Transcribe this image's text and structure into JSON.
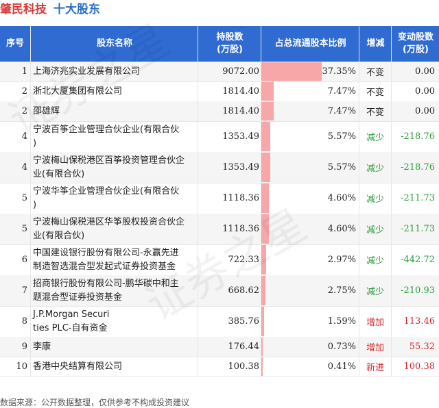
{
  "title": {
    "company": "肇民科技",
    "subtitle": "十大股东"
  },
  "headers": {
    "no": "序号",
    "name": "股东名称",
    "hold_line1": "持股数",
    "hold_line2": "(万股)",
    "ratio": "占总流通股本比例",
    "change": "增减",
    "amount_line1": "变动股数",
    "amount_line2": "(万股)"
  },
  "colors": {
    "header_bg": "#2f6bd0",
    "bar": "#f7a7a7",
    "unchanged": "#222222",
    "decrease": "#2a9d3b",
    "increase": "#d9262b"
  },
  "chart_data": {
    "type": "table",
    "columns": [
      "序号",
      "股东名称",
      "持股数(万股)",
      "占总流通股本比例",
      "增减",
      "变动股数(万股)"
    ],
    "rows": [
      {
        "no": "1",
        "name_lines": [
          "上海济兆实业发展有限公司"
        ],
        "holding": "9072.00",
        "ratio": 37.35,
        "ratio_text": "37.35%",
        "change": "不变",
        "change_type": "unchanged",
        "amount": "0.00"
      },
      {
        "no": "2",
        "name_lines": [
          "浙北大厦集团有限公司"
        ],
        "holding": "1814.40",
        "ratio": 7.47,
        "ratio_text": "7.47%",
        "change": "不变",
        "change_type": "unchanged",
        "amount": "0.00"
      },
      {
        "no": "2",
        "name_lines": [
          "邵雄辉"
        ],
        "holding": "1814.40",
        "ratio": 7.47,
        "ratio_text": "7.47%",
        "change": "不变",
        "change_type": "unchanged",
        "amount": "0.00"
      },
      {
        "no": "4",
        "name_lines": [
          "宁波百筝企业管理合伙企业(有限合伙",
          ")"
        ],
        "holding": "1353.49",
        "ratio": 5.57,
        "ratio_text": "5.57%",
        "change": "减少",
        "change_type": "decrease",
        "amount": "-218.76"
      },
      {
        "no": "4",
        "name_lines": [
          "宁波梅山保税港区百筝投资管理合伙企",
          "业(有限合伙)"
        ],
        "holding": "1353.49",
        "ratio": 5.57,
        "ratio_text": "5.57%",
        "change": "减少",
        "change_type": "decrease",
        "amount": "-218.76"
      },
      {
        "no": "5",
        "name_lines": [
          "宁波华筝企业管理合伙企业(有限合伙",
          ")"
        ],
        "holding": "1118.36",
        "ratio": 4.6,
        "ratio_text": "4.60%",
        "change": "减少",
        "change_type": "decrease",
        "amount": "-211.73"
      },
      {
        "no": "5",
        "name_lines": [
          "宁波梅山保税港区华筝股权投资合伙企",
          "业(有限合伙)"
        ],
        "holding": "1118.36",
        "ratio": 4.6,
        "ratio_text": "4.60%",
        "change": "减少",
        "change_type": "decrease",
        "amount": "-211.73"
      },
      {
        "no": "6",
        "name_lines": [
          "中国建设银行股份有限公司-永赢先进",
          "制造智选混合型发起式证券投资基金"
        ],
        "holding": "722.33",
        "ratio": 2.97,
        "ratio_text": "2.97%",
        "change": "减少",
        "change_type": "decrease",
        "amount": "-442.72"
      },
      {
        "no": "7",
        "name_lines": [
          "招商银行股份有限公司-鹏华碳中和主",
          "题混合型证券投资基金"
        ],
        "holding": "668.62",
        "ratio": 2.75,
        "ratio_text": "2.75%",
        "change": "减少",
        "change_type": "decrease",
        "amount": "-210.93"
      },
      {
        "no": "8",
        "name_lines": [
          "J.P.Morgan Securi",
          "ties PLC-自有资金"
        ],
        "holding": "385.76",
        "ratio": 1.59,
        "ratio_text": "1.59%",
        "change": "增加",
        "change_type": "increase",
        "amount": "113.46"
      },
      {
        "no": "9",
        "name_lines": [
          "李康"
        ],
        "holding": "176.44",
        "ratio": 0.73,
        "ratio_text": "0.73%",
        "change": "增加",
        "change_type": "increase",
        "amount": "55.32"
      },
      {
        "no": "10",
        "name_lines": [
          "香港中央结算有限公司"
        ],
        "holding": "100.38",
        "ratio": 0.41,
        "ratio_text": "0.41%",
        "change": "新进",
        "change_type": "increase",
        "amount": "100.38"
      }
    ]
  },
  "footer": "数据来源：公开数据整理，仅供参考不构成投资建议",
  "watermark": "证券之星"
}
